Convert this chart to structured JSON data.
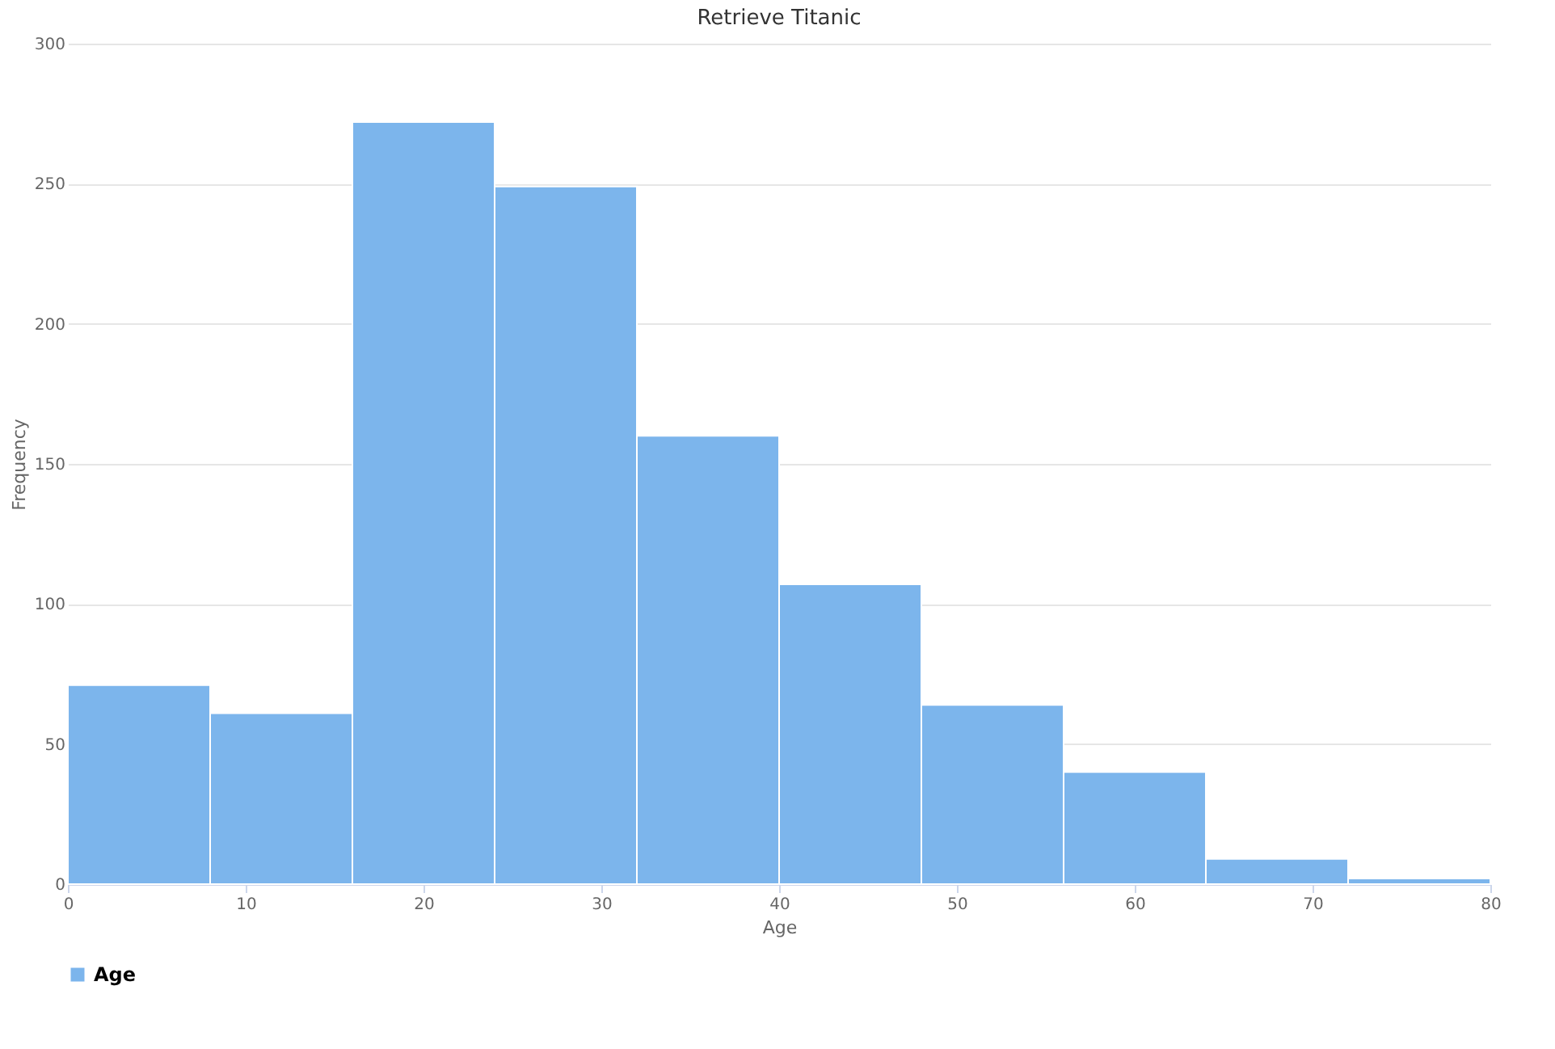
{
  "chart_data": {
    "type": "histogram",
    "title": "Retrieve Titanic",
    "xlabel": "Age",
    "ylabel": "Frequency",
    "bins": [
      0,
      8,
      16,
      24,
      32,
      40,
      48,
      56,
      64,
      72,
      80
    ],
    "series": [
      {
        "name": "Age",
        "color": "#7cb5ec",
        "values": [
          71,
          61,
          272,
          249,
          160,
          107,
          64,
          40,
          9,
          2
        ]
      }
    ],
    "xlim": [
      0,
      80
    ],
    "xticks": [
      0,
      10,
      20,
      30,
      40,
      50,
      60,
      70,
      80
    ],
    "ylim": [
      0,
      300
    ],
    "yticks": [
      0,
      50,
      100,
      150,
      200,
      250,
      300
    ],
    "grid": "y",
    "legend": "bottom"
  }
}
